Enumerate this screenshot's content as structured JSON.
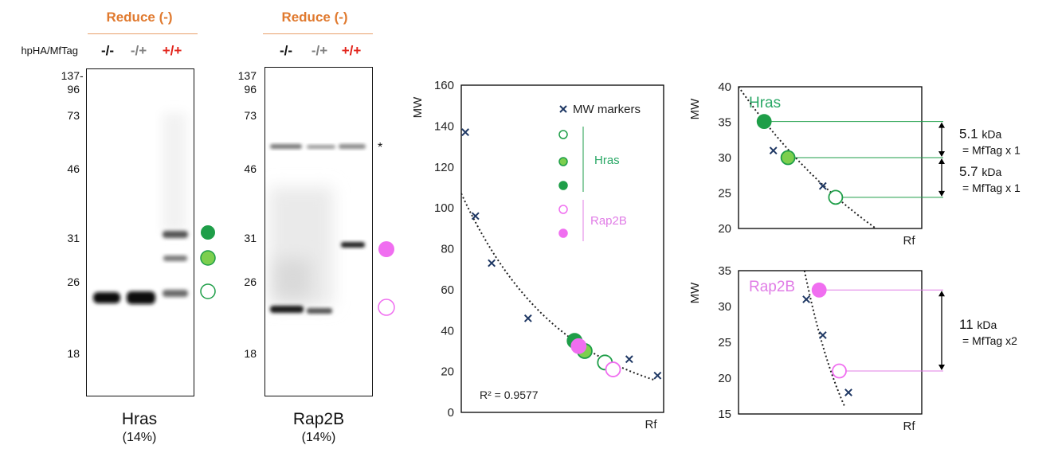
{
  "colors": {
    "reduce_orange": "#e07a2f",
    "minus_black": "#111111",
    "partial_gray": "#808080",
    "plus_red": "#e2231a",
    "hras_green": "#1e9e48",
    "hras_light_green": "#7ccf4e",
    "rap2b_pink": "#f06ef0",
    "rap2b_label": "#e07ce6",
    "marker_navy": "#1f3864",
    "hras_label": "#2aa866"
  },
  "blots": {
    "row_label": "hpHA/MfTag",
    "lanes": [
      "-/-",
      "-/+",
      "+/+"
    ],
    "mw_markers": [
      "137",
      "96",
      "73",
      "46",
      "31",
      "26",
      "18"
    ],
    "hras": {
      "header": "Reduce (-)",
      "name": "Hras",
      "percent": "(14%)"
    },
    "rap2b": {
      "header": "Reduce (-)",
      "name": "Rap2B",
      "percent": "(14%)",
      "nonspecific_mark": "*"
    }
  },
  "chart_data": [
    {
      "type": "scatter",
      "ylabel": "MW",
      "xlabel": "Rf",
      "ylim": [
        0,
        160
      ],
      "yticks": [
        0,
        20,
        40,
        60,
        80,
        100,
        120,
        140,
        160
      ],
      "grid": false,
      "legend_placement": "top-right",
      "legend": {
        "markers_label": "MW markers",
        "groups": [
          {
            "label": "Hras",
            "symbols": [
              "open-green",
              "light-green",
              "dark-green"
            ]
          },
          {
            "label": "Rap2B",
            "symbols": [
              "open-pink",
              "filled-pink"
            ]
          }
        ]
      },
      "annotation": "R² = 0.9577",
      "series": [
        {
          "name": "MW markers",
          "marker": "x",
          "color": "#1f3864",
          "x": [
            0.02,
            0.07,
            0.15,
            0.33,
            0.6,
            0.83,
            0.97
          ],
          "y": [
            137,
            96,
            73,
            46,
            31,
            26,
            18
          ]
        },
        {
          "name": "Hras",
          "marker": "circle",
          "x": [
            0.56,
            0.61,
            0.71
          ],
          "y": [
            35.0,
            30.0,
            24.4
          ],
          "styles": [
            "dark-green",
            "light-green",
            "open-green"
          ]
        },
        {
          "name": "Rap2B",
          "marker": "circle",
          "x": [
            0.58,
            0.75
          ],
          "y": [
            32.4,
            21.0
          ],
          "styles": [
            "filled-pink",
            "open-pink"
          ]
        }
      ],
      "trendline": {
        "kind": "exponential",
        "x_range": [
          0.0,
          0.95
        ],
        "y_at_start": 107,
        "y_at_end": 16
      }
    },
    {
      "type": "scatter",
      "title": "Hras",
      "ylabel": "MW",
      "xlabel": "Rf",
      "ylim": [
        20,
        40
      ],
      "yticks": [
        20,
        25,
        30,
        35,
        40
      ],
      "series": [
        {
          "name": "MW markers",
          "marker": "x",
          "color": "#1f3864",
          "x": [
            0.19,
            0.46
          ],
          "y": [
            31,
            26
          ]
        },
        {
          "name": "Hras",
          "marker": "circle",
          "x": [
            0.14,
            0.27,
            0.53
          ],
          "y": [
            35.1,
            30.0,
            24.4
          ],
          "styles": [
            "dark-green",
            "light-green",
            "open-green"
          ]
        }
      ],
      "trendline": {
        "kind": "exponential",
        "x_range": [
          0.0,
          0.75
        ],
        "y_at_start": 40,
        "y_at_end": 20
      },
      "annotations": [
        {
          "value": "5.1",
          "unit": "kDa",
          "note": "= MfTag x 1",
          "from": 35.1,
          "to": 30.0
        },
        {
          "value": "5.7",
          "unit": "kDa",
          "note": "= MfTag x 1",
          "from": 30.0,
          "to": 24.4
        }
      ]
    },
    {
      "type": "scatter",
      "title": "Rap2B",
      "ylabel": "MW",
      "xlabel": "Rf",
      "ylim": [
        15,
        35
      ],
      "yticks": [
        15,
        20,
        25,
        30,
        35
      ],
      "series": [
        {
          "name": "MW markers",
          "marker": "x",
          "color": "#1f3864",
          "x": [
            0.37,
            0.46,
            0.6
          ],
          "y": [
            31,
            26,
            18
          ]
        },
        {
          "name": "Rap2B",
          "marker": "circle",
          "x": [
            0.44,
            0.55
          ],
          "y": [
            32.3,
            21.0
          ],
          "styles": [
            "filled-pink",
            "open-pink"
          ]
        }
      ],
      "trendline": {
        "kind": "exponential",
        "x_range": [
          0.36,
          0.58
        ],
        "y_at_start": 35,
        "y_at_end": 16
      },
      "annotations": [
        {
          "value": "11",
          "unit": "kDa",
          "note": "= MfTag x2",
          "from": 32.3,
          "to": 21.0
        }
      ]
    }
  ]
}
